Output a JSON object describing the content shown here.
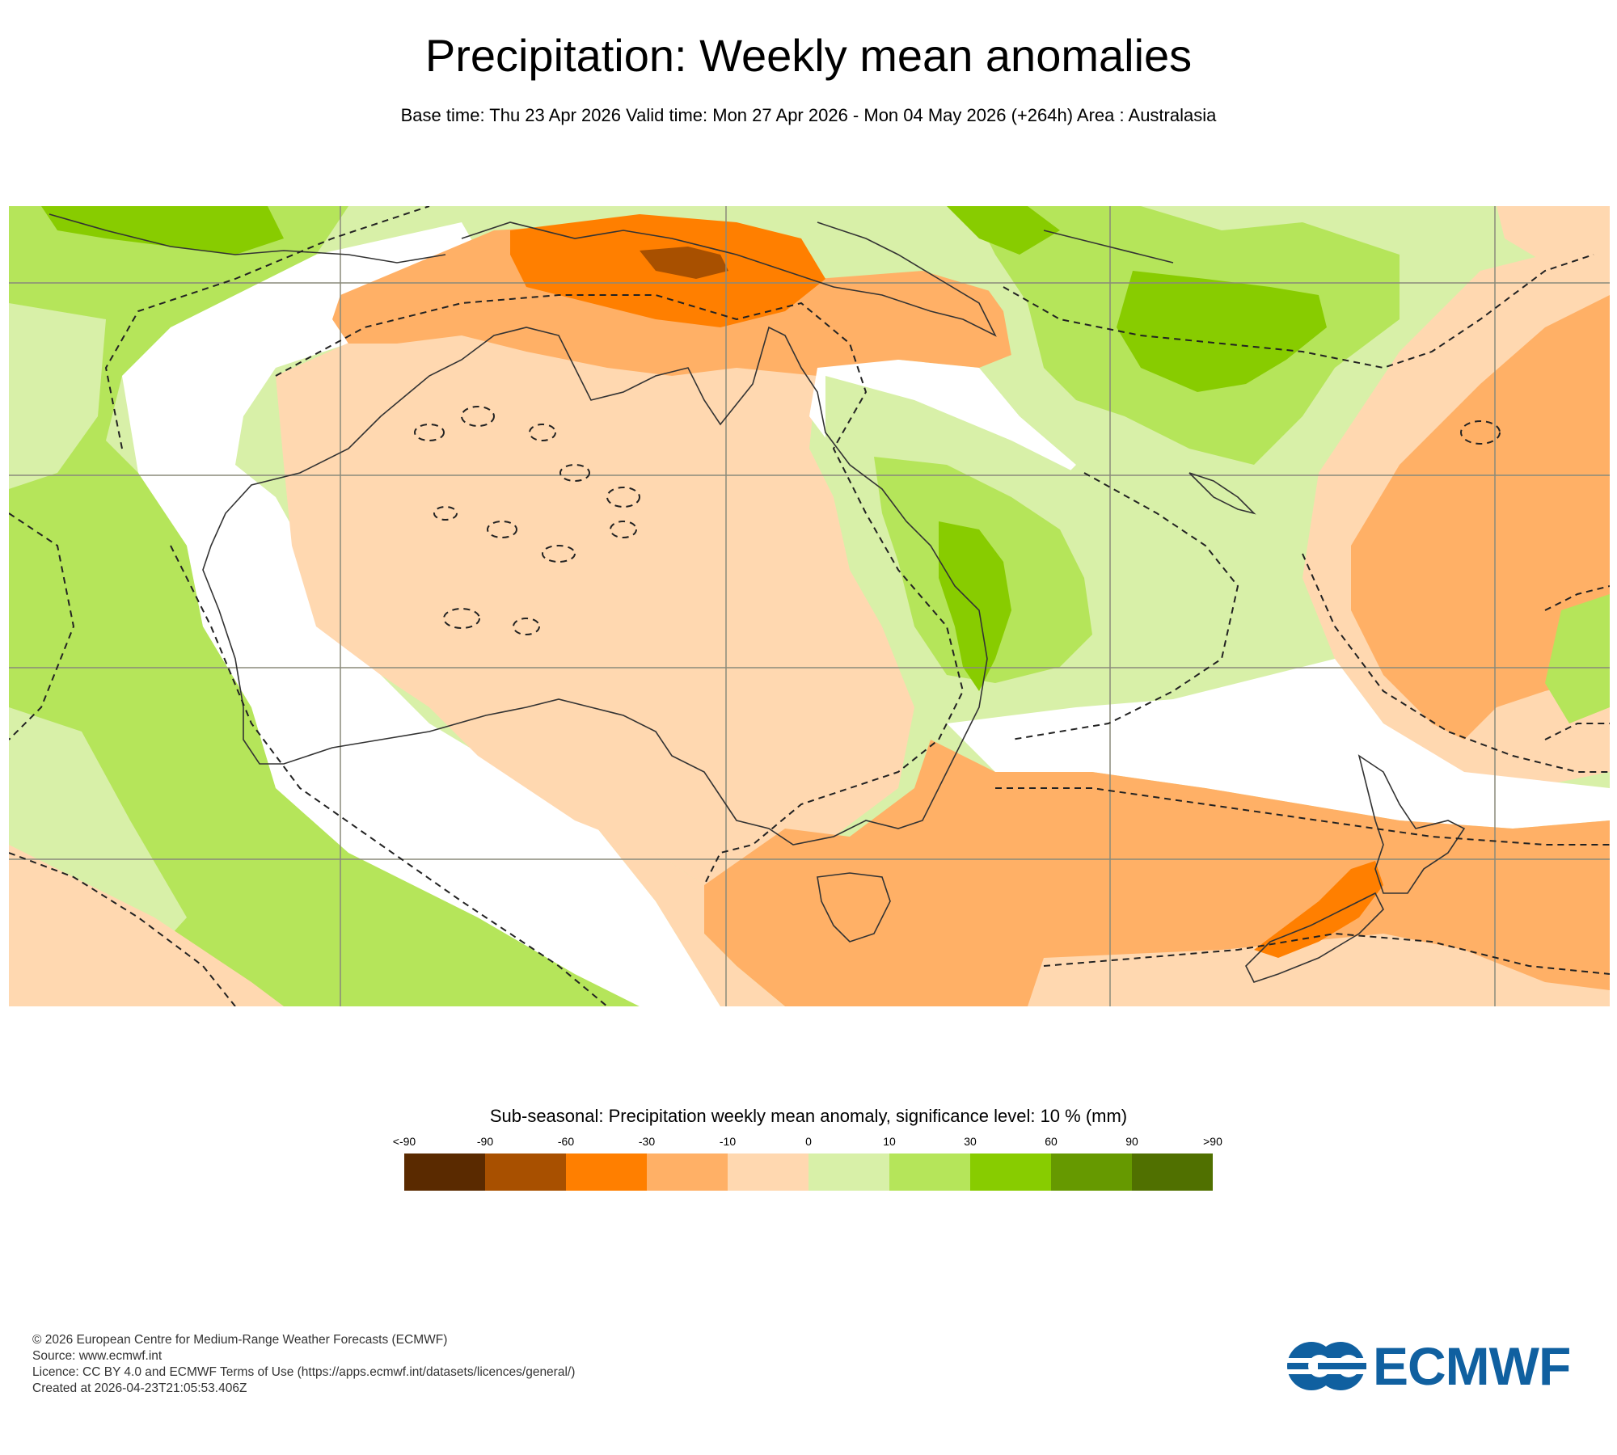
{
  "header": {
    "title": "Precipitation: Weekly mean anomalies",
    "subtitle": "Base time: Thu 23 Apr 2026 Valid time: Mon 27 Apr 2026 - Mon 04 May 2026 (+264h) Area : Australasia"
  },
  "legend": {
    "title": "Sub-seasonal: Precipitation weekly mean anomaly, significance level: 10 % (mm)",
    "ticks": [
      "<-90",
      "-90",
      "-60",
      "-30",
      "-10",
      "0",
      "10",
      "30",
      "60",
      "90",
      ">90"
    ],
    "colors": [
      "#5a2a00",
      "#a85000",
      "#ff7f00",
      "#ffb066",
      "#ffd8b0",
      "#d8f0a8",
      "#b5e55a",
      "#88cc00",
      "#669900",
      "#507000"
    ]
  },
  "map_colors": {
    "strong_negative": "#ff7f00",
    "very_strong_negative": "#a85000",
    "negative": "#ffb066",
    "weak_negative": "#ffd8b0",
    "weak_positive": "#d8f0a8",
    "positive": "#b5e55a",
    "strong_positive": "#88cc00",
    "coastline": "#333333",
    "grid": "#8a8a7a",
    "significance_contour": "#222222"
  },
  "footer": {
    "copyright": "© 2026 European Centre for Medium-Range Weather Forecasts (ECMWF)",
    "source": "Source: www.ecmwf.int",
    "licence": "Licence: CC BY 4.0 and ECMWF Terms of Use (https://apps.ecmwf.int/datasets/licences/general/)",
    "created": "Created at 2026-04-23T21:05:53.406Z"
  },
  "logo": {
    "text": "ECMWF",
    "color": "#1060a0"
  }
}
